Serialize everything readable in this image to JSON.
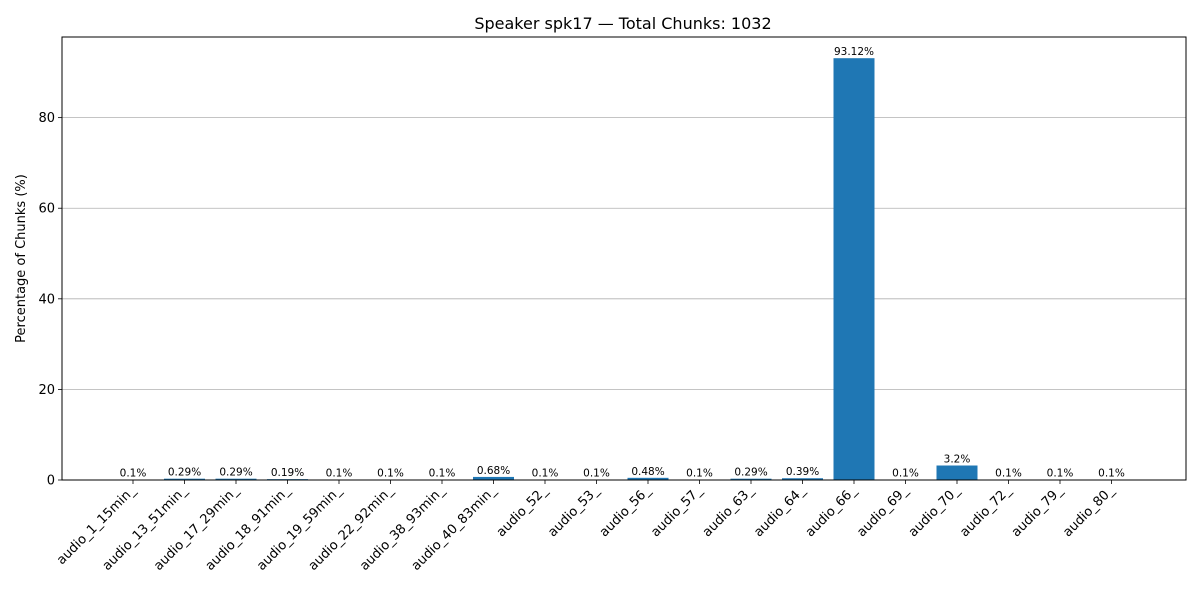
{
  "chart_data": {
    "type": "bar",
    "title": "Speaker spk17 — Total Chunks: 1032",
    "xlabel": "",
    "ylabel": "Percentage of Chunks (%)",
    "ylim": [
      0,
      97.8
    ],
    "yticks": [
      0,
      20,
      40,
      60,
      80
    ],
    "grid": "y",
    "color": "#1f77b4",
    "categories": [
      "audio_1_15min_",
      "audio_13_51min_",
      "audio_17_29min_",
      "audio_18_91min_",
      "audio_19_59min_",
      "audio_22_92min_",
      "audio_38_93min_",
      "audio_40_83min_",
      "audio_52_",
      "audio_53_",
      "audio_56_",
      "audio_57_",
      "audio_63_",
      "audio_64_",
      "audio_66_",
      "audio_69_",
      "audio_70_",
      "audio_72_",
      "audio_79_",
      "audio_80_"
    ],
    "values": [
      0.1,
      0.29,
      0.29,
      0.19,
      0.1,
      0.1,
      0.1,
      0.68,
      0.1,
      0.1,
      0.48,
      0.1,
      0.29,
      0.39,
      93.12,
      0.1,
      3.2,
      0.1,
      0.1,
      0.1
    ],
    "labels": [
      "0.1%",
      "0.29%",
      "0.29%",
      "0.19%",
      "0.1%",
      "0.1%",
      "0.1%",
      "0.68%",
      "0.1%",
      "0.1%",
      "0.48%",
      "0.1%",
      "0.29%",
      "0.39%",
      "93.12%",
      "0.1%",
      "3.2%",
      "0.1%",
      "0.1%",
      "0.1%"
    ]
  }
}
